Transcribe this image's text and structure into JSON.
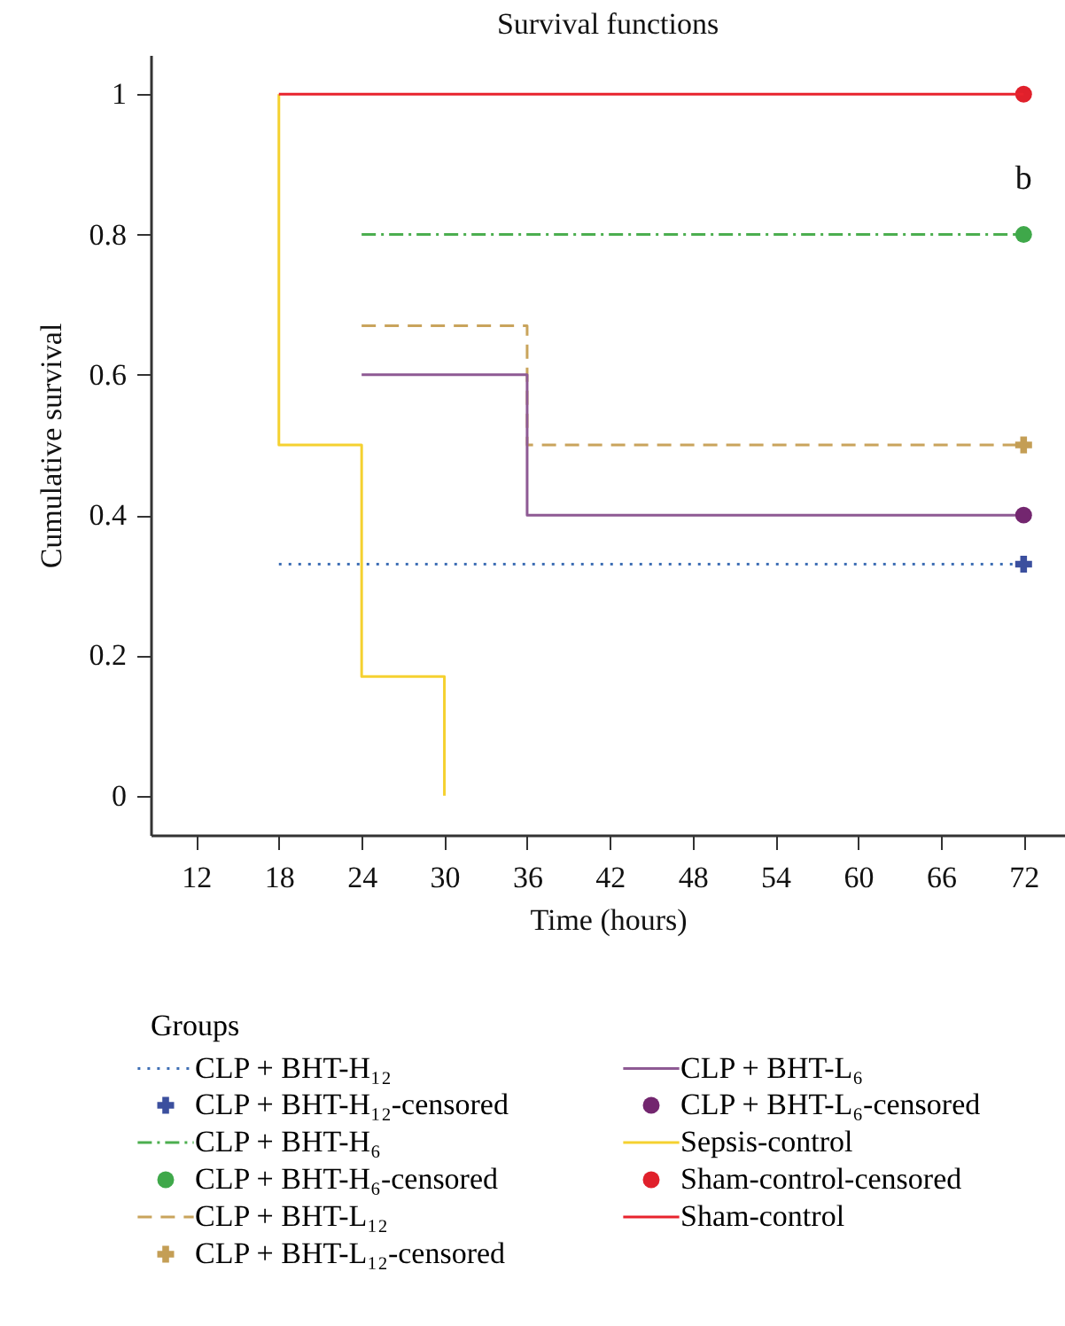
{
  "chart_data": {
    "type": "step",
    "title": "Survival functions",
    "xlabel": "Time (hours)",
    "ylabel": "Cumulative survival",
    "legend_title": "Groups",
    "xlim": [
      8.7,
      75
    ],
    "xticks": [
      12,
      18,
      24,
      30,
      36,
      42,
      48,
      54,
      60,
      66,
      72
    ],
    "ylim": [
      -0.056,
      1.056
    ],
    "yticks": [
      0,
      0.2,
      0.4,
      0.6,
      0.8,
      1
    ],
    "grid": false,
    "legend": "bottom",
    "annotations": [
      {
        "text": "b",
        "x": 72,
        "y": 0.8
      }
    ],
    "series": [
      {
        "name": "CLP + BHT-H₁₂",
        "color": "#3f6fb5",
        "line_style": "dotted",
        "x": [
          18,
          72
        ],
        "values": [
          0.33,
          0.33
        ]
      },
      {
        "name": "CLP + BHT-H₁₂-censored",
        "type": "scatter",
        "marker": "cross",
        "color": "#3b4f9e",
        "x": [
          72
        ],
        "values": [
          0.33
        ]
      },
      {
        "name": "CLP + BHT-H₆",
        "color": "#4cae4f",
        "line_style": "dashdot",
        "x": [
          24,
          72
        ],
        "values": [
          0.8,
          0.8
        ]
      },
      {
        "name": "CLP + BHT-H₆-censored",
        "type": "scatter",
        "marker": "circle",
        "color": "#3fa84a",
        "x": [
          72
        ],
        "values": [
          0.8
        ]
      },
      {
        "name": "CLP + BHT-L₁₂",
        "color": "#c9a45c",
        "line_style": "dashed",
        "x": [
          24,
          36,
          72
        ],
        "values": [
          0.67,
          0.5,
          0.5
        ]
      },
      {
        "name": "CLP + BHT-L₁₂-censored",
        "type": "scatter",
        "marker": "cross",
        "color": "#c49e55",
        "x": [
          72
        ],
        "values": [
          0.5
        ]
      },
      {
        "name": "CLP + BHT-L₆",
        "color": "#8e5a94",
        "line_style": "solid",
        "x": [
          24,
          36,
          72
        ],
        "values": [
          0.6,
          0.4,
          0.4
        ]
      },
      {
        "name": "CLP + BHT-L₆-censored",
        "type": "scatter",
        "marker": "circle",
        "color": "#73266f",
        "x": [
          72
        ],
        "values": [
          0.4
        ]
      },
      {
        "name": "Sepsis-control",
        "color": "#f5d130",
        "line_style": "solid",
        "x": [
          18,
          18,
          24,
          30
        ],
        "values": [
          1,
          0.5,
          0.17,
          0
        ]
      },
      {
        "name": "Sham-control-censored",
        "type": "scatter",
        "marker": "circle",
        "color": "#e0202b",
        "x": [
          72
        ],
        "values": [
          1
        ]
      },
      {
        "name": "Sham-control",
        "color": "#e8232d",
        "line_style": "solid",
        "x": [
          18,
          72
        ],
        "values": [
          1,
          1
        ]
      }
    ]
  }
}
